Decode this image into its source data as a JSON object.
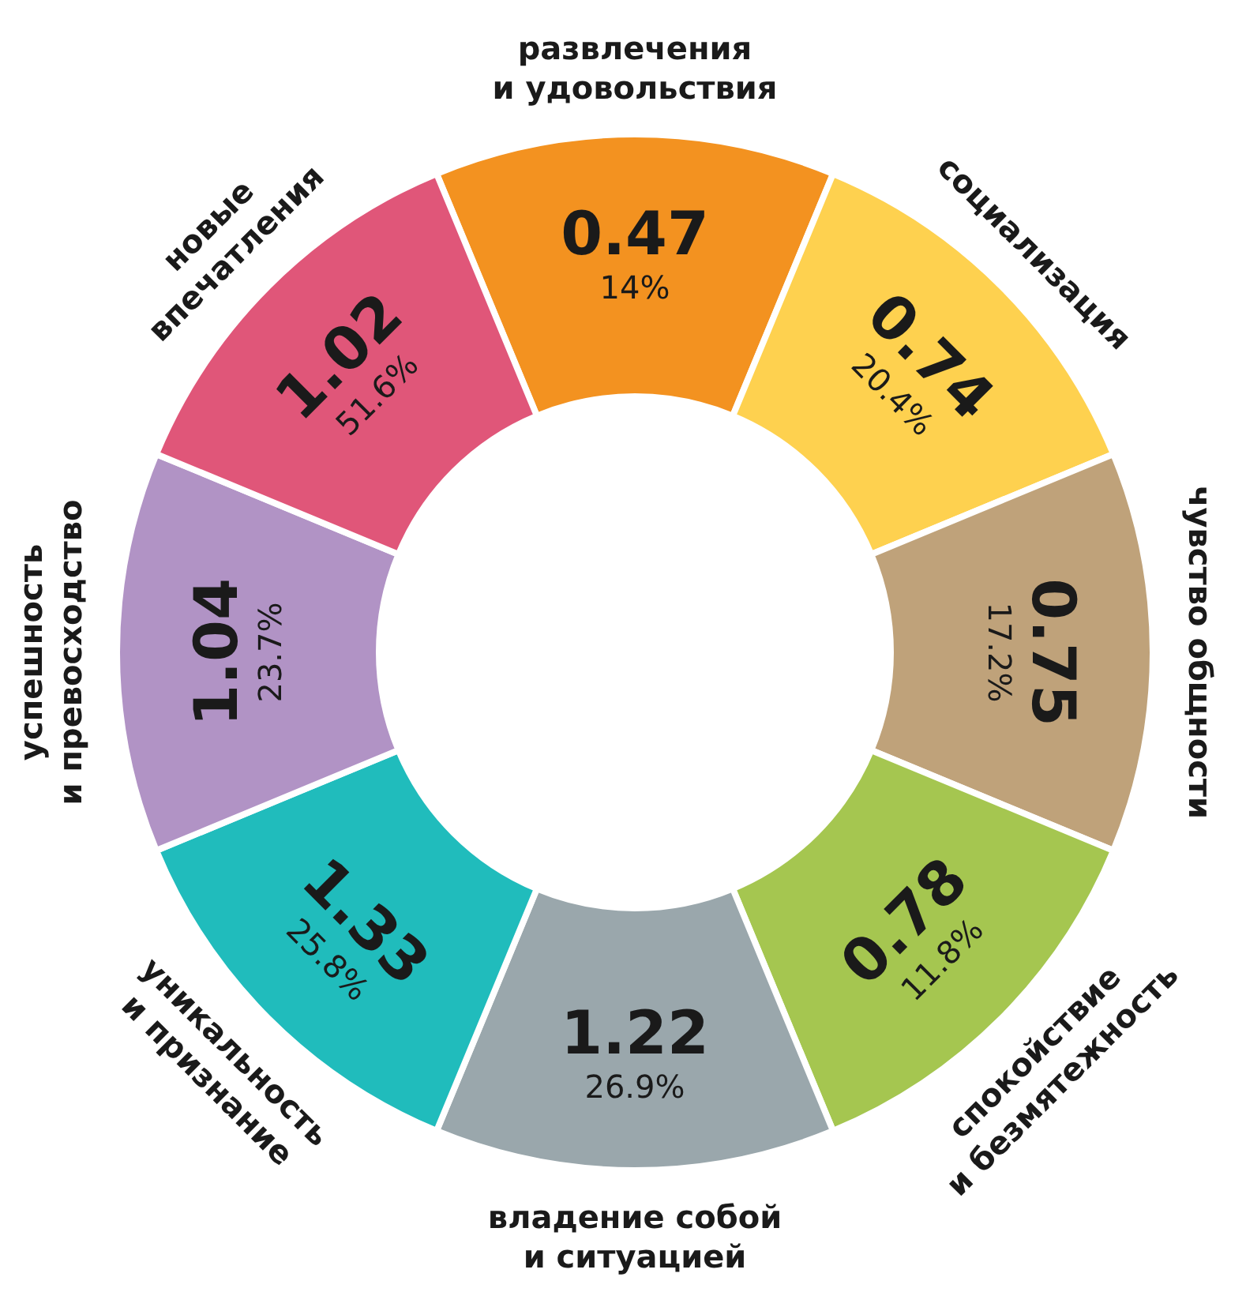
{
  "chart_data": {
    "type": "donut",
    "categories": [
      "развлечения\nи удовольствия",
      "социализация",
      "чувство общности",
      "спокойствие\nи безмятежность",
      "владение собой\nи ситуацией",
      "уникальность\nи признание",
      "успешность\nи превосходство",
      "новые\nвпечатления"
    ],
    "values": [
      12.5,
      12.5,
      12.5,
      12.5,
      12.5,
      12.5,
      12.5,
      12.5
    ],
    "colors": [
      "#f39220",
      "#fed14f",
      "#bfa27a",
      "#a5c650",
      "#9aa7ac",
      "#20bcbc",
      "#b193c5",
      "#e05679"
    ],
    "annotations": [
      "0.47\n14%",
      "0.74\n20.4%",
      "0.75\n17.2%",
      "0.78\n11.8%",
      "1.22\n26.9%",
      "1.33\n25.8%",
      "1.04\n23.7%",
      "1.02\n51.6%"
    ],
    "legend": false
  }
}
